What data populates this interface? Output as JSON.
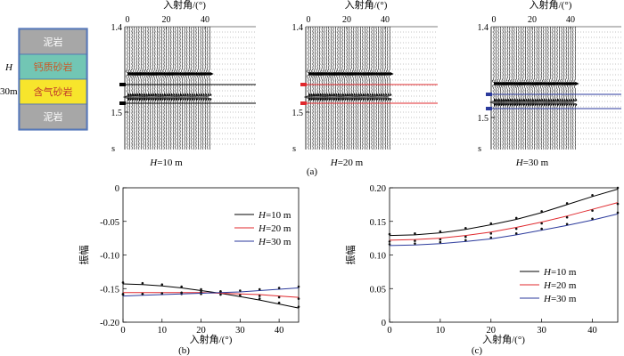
{
  "model": {
    "layers": [
      {
        "label": "泥岩",
        "color": "#a7a7a7",
        "text_color": "#ffffff"
      },
      {
        "label": "钙质砂岩",
        "color": "#72c6b4",
        "text_color": "#c85a2a"
      },
      {
        "label": "含气砂岩",
        "color": "#f7e52c",
        "text_color": "#c0392b"
      },
      {
        "label": "泥岩",
        "color": "#a7a7a7",
        "text_color": "#ffffff"
      }
    ],
    "h_label": "H",
    "thickness_label": "30m"
  },
  "gathers": {
    "x_title": "入射角/(°)",
    "x_ticks": [
      "0",
      "20",
      "40"
    ],
    "y_tick_top": "1.4",
    "y_tick_bottom": "1.5",
    "y_unit": "s",
    "panel_label": "(a)",
    "panels": [
      {
        "caption_italic": "H",
        "caption_rest": "=10 m",
        "marker_color": "#000000"
      },
      {
        "caption_italic": "H",
        "caption_rest": "=20 m",
        "marker_color": "#e0292e"
      },
      {
        "caption_italic": "H",
        "caption_rest": "=30 m",
        "marker_color": "#2b3a9c"
      }
    ]
  },
  "chart_data": [
    {
      "type": "line",
      "panel": "(b)",
      "xlabel": "入射角/(°)",
      "ylabel": "振幅",
      "xlim": [
        0,
        45
      ],
      "ylim": [
        -0.2,
        0
      ],
      "xticks": [
        "0",
        "10",
        "20",
        "30",
        "40"
      ],
      "yticks": [
        "0",
        "-0.05",
        "-0.10",
        "-0.15",
        "-0.20"
      ],
      "legend": "top-right",
      "series": [
        {
          "name_italic": "H",
          "name_rest": "=10 m",
          "color": "#000000",
          "x": [
            0,
            5,
            10,
            15,
            20,
            25,
            30,
            35,
            40,
            45
          ],
          "values": [
            -0.143,
            -0.144,
            -0.146,
            -0.149,
            -0.153,
            -0.157,
            -0.162,
            -0.167,
            -0.173,
            -0.179
          ]
        },
        {
          "name_italic": "H",
          "name_rest": "=20 m",
          "color": "#e0292e",
          "x": [
            0,
            5,
            10,
            15,
            20,
            25,
            30,
            35,
            40,
            45
          ],
          "values": [
            -0.156,
            -0.156,
            -0.156,
            -0.156,
            -0.156,
            -0.157,
            -0.158,
            -0.159,
            -0.161,
            -0.163
          ]
        },
        {
          "name_italic": "H",
          "name_rest": "=30 m",
          "color": "#2b3a9c",
          "x": [
            0,
            5,
            10,
            15,
            20,
            25,
            30,
            35,
            40,
            45
          ],
          "values": [
            -0.161,
            -0.16,
            -0.159,
            -0.158,
            -0.157,
            -0.156,
            -0.155,
            -0.153,
            -0.151,
            -0.149
          ]
        }
      ]
    },
    {
      "type": "line",
      "panel": "(c)",
      "xlabel": "入射角/(°)",
      "ylabel": "振幅",
      "xlim": [
        0,
        45
      ],
      "ylim": [
        0,
        0.2
      ],
      "xticks": [
        "0",
        "10",
        "20",
        "30",
        "40"
      ],
      "yticks": [
        "0.20",
        "0.15",
        "0.10",
        "0.05",
        "0"
      ],
      "legend": "bottom-right",
      "series": [
        {
          "name_italic": "H",
          "name_rest": "=10 m",
          "color": "#000000",
          "x": [
            0,
            5,
            10,
            15,
            20,
            25,
            30,
            35,
            40,
            45
          ],
          "values": [
            0.129,
            0.13,
            0.133,
            0.138,
            0.145,
            0.153,
            0.163,
            0.175,
            0.187,
            0.198
          ]
        },
        {
          "name_italic": "H",
          "name_rest": "=20 m",
          "color": "#e0292e",
          "x": [
            0,
            5,
            10,
            15,
            20,
            25,
            30,
            35,
            40,
            45
          ],
          "values": [
            0.122,
            0.123,
            0.125,
            0.129,
            0.134,
            0.141,
            0.149,
            0.158,
            0.168,
            0.178
          ]
        },
        {
          "name_italic": "H",
          "name_rest": "=30 m",
          "color": "#2b3a9c",
          "x": [
            0,
            5,
            10,
            15,
            20,
            25,
            30,
            35,
            40,
            45
          ],
          "values": [
            0.114,
            0.115,
            0.117,
            0.12,
            0.124,
            0.13,
            0.137,
            0.144,
            0.152,
            0.161
          ]
        }
      ]
    }
  ]
}
